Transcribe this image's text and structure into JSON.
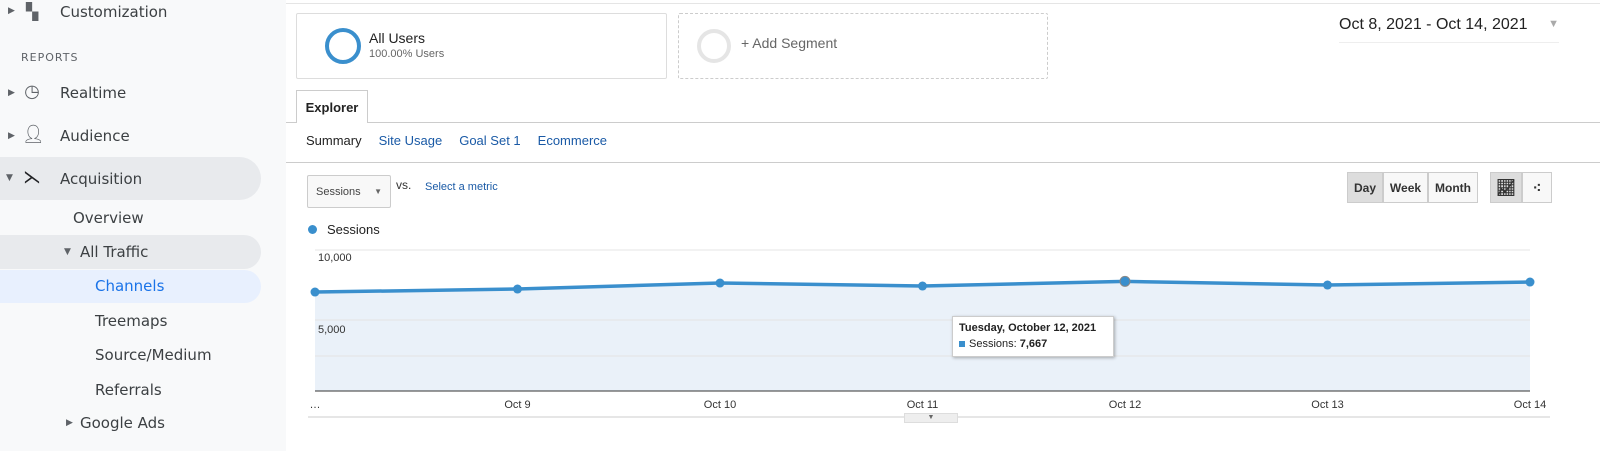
{
  "sidebar": {
    "customization": "Customization",
    "reports_heading": "REPORTS",
    "realtime": "Realtime",
    "audience": "Audience",
    "acquisition": "Acquisition",
    "overview": "Overview",
    "all_traffic": "All Traffic",
    "channels": "Channels",
    "treemaps": "Treemaps",
    "source_medium": "Source/Medium",
    "referrals": "Referrals",
    "google_ads": "Google Ads"
  },
  "segments": {
    "all_users": "All Users",
    "all_users_pct": "100.00% Users",
    "add_segment": "+ Add Segment"
  },
  "date_range": "Oct 8, 2021 - Oct 14, 2021",
  "tabs": {
    "explorer": "Explorer"
  },
  "subtabs": [
    "Summary",
    "Site Usage",
    "Goal Set 1",
    "Ecommerce"
  ],
  "metric": {
    "selected": "Sessions",
    "vs": "vs.",
    "select_metric": "Select a metric"
  },
  "granularity": [
    "Day",
    "Week",
    "Month"
  ],
  "selected_granularity": "Day",
  "accent": "#3a8fcd",
  "tooltip": {
    "title": "Tuesday, October 12, 2021",
    "label": "Sessions: ",
    "value": "7,667"
  },
  "chart_data": {
    "type": "area",
    "legend": "Sessions",
    "x": [
      "…",
      "Oct 9",
      "Oct 10",
      "Oct 11",
      "Oct 12",
      "Oct 13",
      "Oct 14"
    ],
    "dates": [
      "Oct 8",
      "Oct 9",
      "Oct 10",
      "Oct 11",
      "Oct 12",
      "Oct 13",
      "Oct 14"
    ],
    "values": [
      6920,
      7130,
      7550,
      7340,
      7667,
      7410,
      7620
    ],
    "yticks": [
      "10,000",
      "5,000"
    ],
    "ylim": [
      0,
      10000
    ],
    "grid": true
  }
}
